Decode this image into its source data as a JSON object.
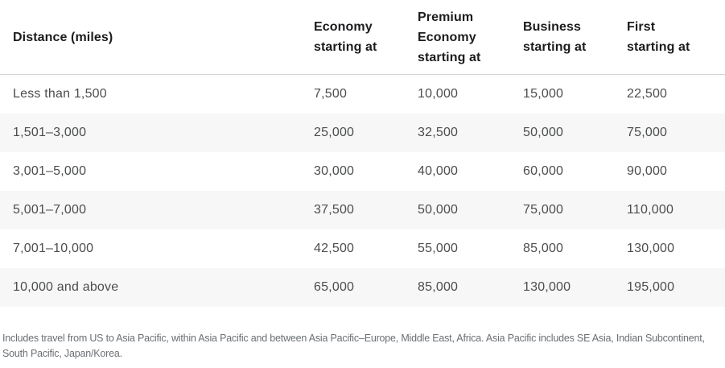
{
  "colors": {
    "page_bg": "#ffffff",
    "stripe_bg": "#f7f7f7",
    "divider": "#d6d6d6",
    "header_text": "#1c1c1e",
    "body_text": "#4b4d4f",
    "footnote_text": "#6b6f73"
  },
  "table": {
    "headers": [
      "Distance (miles)",
      "Economy starting at",
      "Premium Economy starting at",
      "Business starting at",
      "First starting at"
    ],
    "rows": [
      {
        "cells": [
          "Less than 1,500",
          "7,500",
          "10,000",
          "15,000",
          "22,500"
        ]
      },
      {
        "cells": [
          "1,501–3,000",
          "25,000",
          "32,500",
          "50,000",
          "75,000"
        ]
      },
      {
        "cells": [
          "3,001–5,000",
          "30,000",
          "40,000",
          "60,000",
          "90,000"
        ]
      },
      {
        "cells": [
          "5,001–7,000",
          "37,500",
          "50,000",
          "75,000",
          "110,000"
        ]
      },
      {
        "cells": [
          "7,001–10,000",
          "42,500",
          "55,000",
          "85,000",
          "130,000"
        ]
      },
      {
        "cells": [
          "10,000 and above",
          "65,000",
          "85,000",
          "130,000",
          "195,000"
        ]
      }
    ]
  },
  "footnote": "Includes travel from US to Asia Pacific, within Asia Pacific and between Asia Pacific–Europe, Middle East, Africa. Asia Pacific includes SE Asia, Indian Subcontinent, South Pacific, Japan/Korea.",
  "chart_data": {
    "type": "table",
    "columns": [
      "Distance (miles)",
      "Economy starting at",
      "Premium Economy starting at",
      "Business starting at",
      "First starting at"
    ],
    "rows": [
      {
        "distance": "Less than 1,500",
        "economy": 7500,
        "premium_economy": 10000,
        "business": 15000,
        "first": 22500
      },
      {
        "distance": "1,501–3,000",
        "economy": 25000,
        "premium_economy": 32500,
        "business": 50000,
        "first": 75000
      },
      {
        "distance": "3,001–5,000",
        "economy": 30000,
        "premium_economy": 40000,
        "business": 60000,
        "first": 90000
      },
      {
        "distance": "5,001–7,000",
        "economy": 37500,
        "premium_economy": 50000,
        "business": 75000,
        "first": 110000
      },
      {
        "distance": "7,001–10,000",
        "economy": 42500,
        "premium_economy": 55000,
        "business": 85000,
        "first": 130000
      },
      {
        "distance": "10,000 and above",
        "economy": 65000,
        "premium_economy": 85000,
        "business": 130000,
        "first": 195000
      }
    ],
    "footnote": "Includes travel from US to Asia Pacific, within Asia Pacific and between Asia Pacific–Europe, Middle East, Africa. Asia Pacific includes SE Asia, Indian Subcontinent, South Pacific, Japan/Korea."
  }
}
